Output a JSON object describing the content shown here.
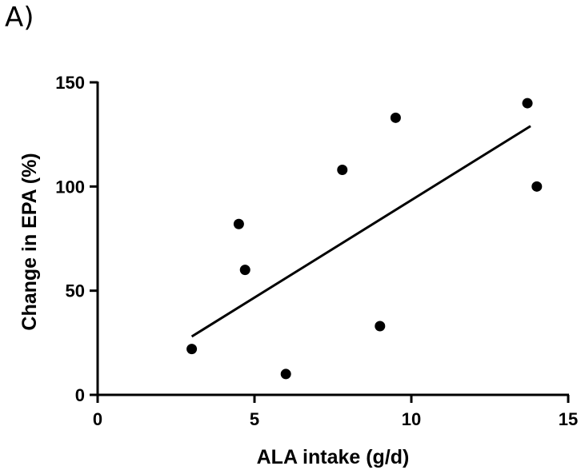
{
  "panel_label": "A)",
  "chart_data": {
    "type": "scatter",
    "title": "",
    "xlabel": "ALA intake (g/d)",
    "ylabel": "Change in EPA (%)",
    "xlim": [
      0,
      15
    ],
    "ylim": [
      0,
      150
    ],
    "x_ticks": [
      0,
      5,
      10,
      15
    ],
    "y_ticks": [
      0,
      50,
      100,
      150
    ],
    "grid": false,
    "points": [
      {
        "x": 3.0,
        "y": 22
      },
      {
        "x": 4.5,
        "y": 82
      },
      {
        "x": 4.7,
        "y": 60
      },
      {
        "x": 6.0,
        "y": 10
      },
      {
        "x": 7.8,
        "y": 108
      },
      {
        "x": 9.0,
        "y": 33
      },
      {
        "x": 9.5,
        "y": 133
      },
      {
        "x": 13.7,
        "y": 140
      },
      {
        "x": 14.0,
        "y": 100
      }
    ],
    "trendline": {
      "x": [
        3.0,
        13.8
      ],
      "y": [
        28,
        129
      ]
    },
    "colors": {
      "points": "#000000",
      "line": "#000000",
      "axes": "#000000"
    }
  }
}
